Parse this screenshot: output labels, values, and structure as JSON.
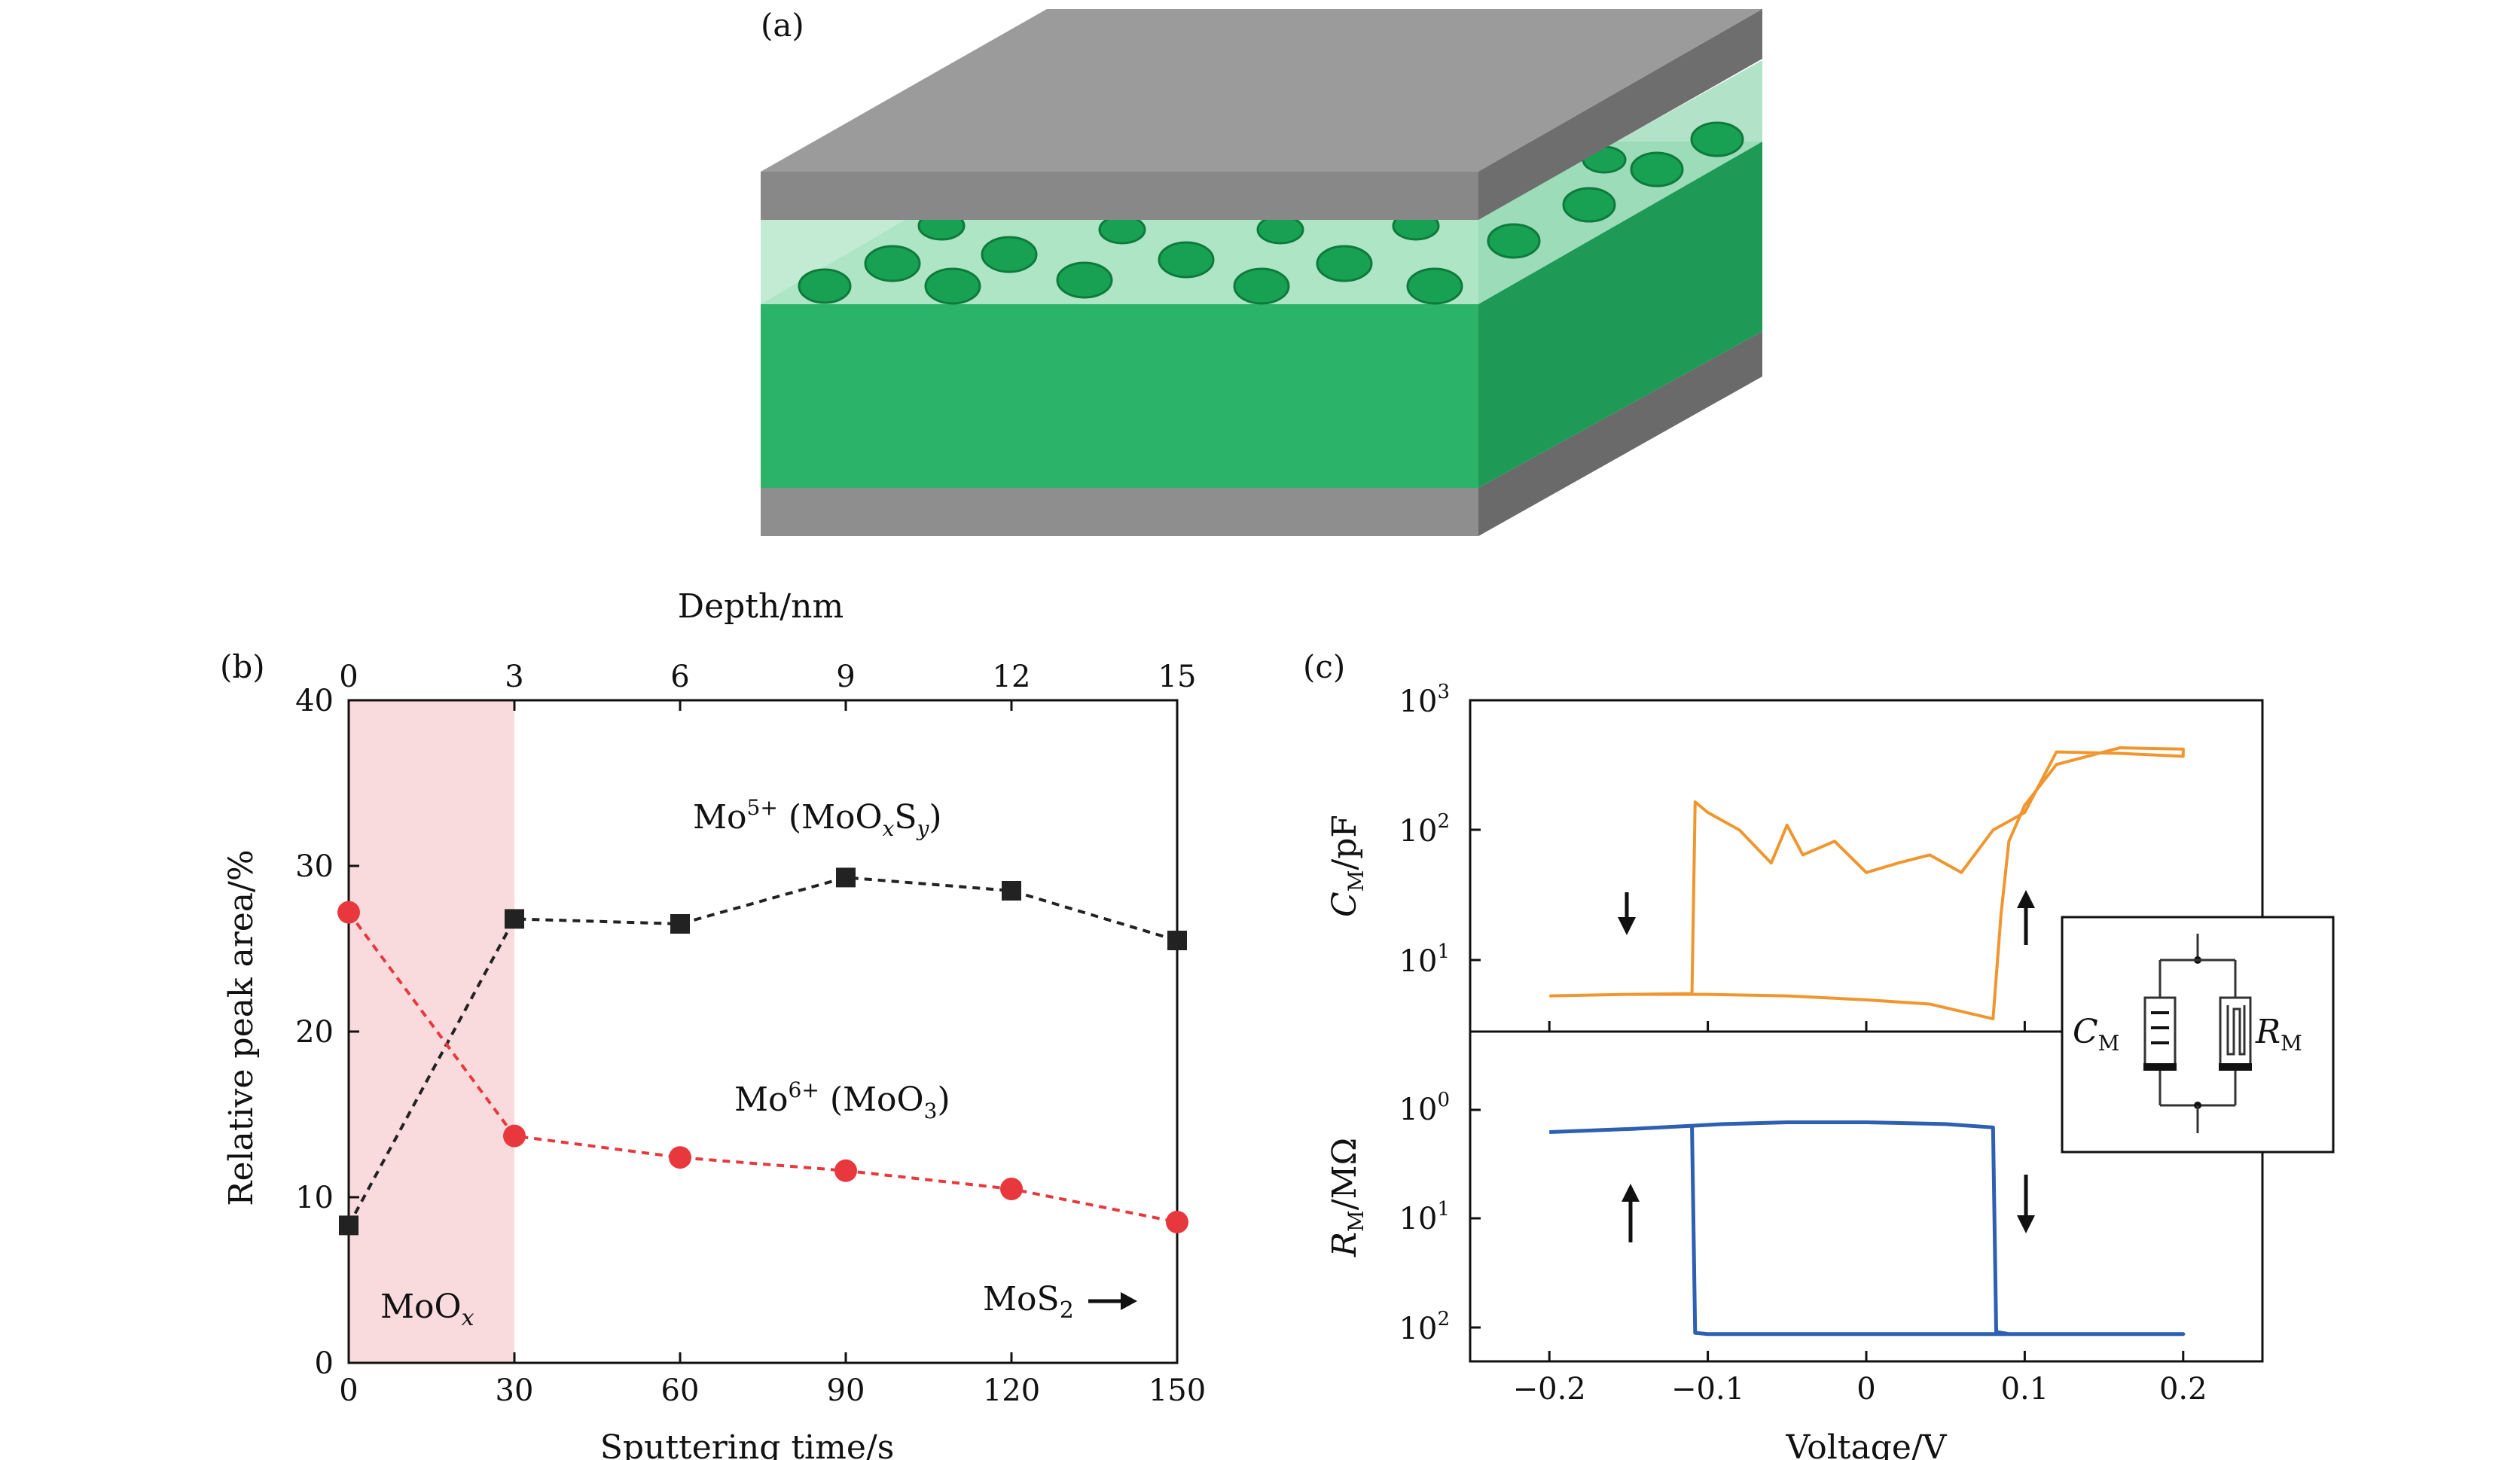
{
  "panel_a": {
    "label": "(a)"
  },
  "panel_b": {
    "label": "(b)"
  },
  "panel_c": {
    "label": "(c)"
  },
  "chart_data": [
    {
      "panel": "b",
      "type": "line",
      "xlabel": "Sputtering time/s",
      "x2label": "Depth/nm",
      "ylabel": "Relative peak area/%",
      "xlim": [
        0,
        150
      ],
      "ylim": [
        0,
        40
      ],
      "x_ticks": [
        0,
        30,
        60,
        90,
        120,
        150
      ],
      "x2_ticks": [
        0,
        3,
        6,
        9,
        12,
        15
      ],
      "y_ticks": [
        0,
        10,
        20,
        30,
        40
      ],
      "shaded_region": {
        "x": [
          0,
          30
        ],
        "color": "#f9dadd",
        "label": "MoOx"
      },
      "annotation_right": "MoS2",
      "series": [
        {
          "name": "Mo5+ (MoOxSy)",
          "color": "#222222",
          "marker": "square",
          "x": [
            0,
            30,
            60,
            90,
            120,
            150
          ],
          "y": [
            8.3,
            26.8,
            26.5,
            29.3,
            28.5,
            25.5
          ]
        },
        {
          "name": "Mo6+ (MoO3)",
          "color": "#e8383d",
          "marker": "circle",
          "x": [
            0,
            30,
            60,
            90,
            120,
            150
          ],
          "y": [
            27.2,
            13.7,
            12.4,
            11.6,
            10.5,
            8.5
          ]
        }
      ]
    },
    {
      "panel": "c",
      "type": "line",
      "xlabel": "Voltage/V",
      "xlim": [
        -0.25,
        0.25
      ],
      "x_ticks": [
        -0.2,
        -0.1,
        0,
        0.1,
        0.2
      ],
      "x_tick_labels": [
        "−0.2",
        "−0.1",
        "0",
        "0.1",
        "0.2"
      ],
      "top_ylabel": "CM/pF",
      "top_y_ticks": [
        "10^1",
        "10^2",
        "10^3"
      ],
      "bottom_ylabel": "RM/MΩ",
      "bottom_y_ticks": [
        "10^0",
        "10^1",
        "10^2"
      ],
      "inset_labels": [
        "CM",
        "RM"
      ],
      "series": [
        {
          "name": "CM",
          "color": "#f0962e",
          "x": [
            -0.2,
            -0.15,
            -0.11,
            -0.108,
            -0.1,
            -0.08,
            -0.06,
            -0.05,
            -0.04,
            -0.02,
            0,
            0.02,
            0.04,
            0.06,
            0.08,
            0.1,
            0.12,
            0.16,
            0.2,
            0.2,
            0.16,
            0.12,
            0.1,
            0.09,
            0.085,
            0.08,
            0.04,
            0,
            -0.05,
            -0.1,
            -0.15,
            -0.2
          ],
          "y": [
            8,
            8.2,
            8.3,
            190,
            160,
            120,
            70,
            130,
            80,
            100,
            60,
            70,
            80,
            60,
            120,
            160,
            430,
            420,
            400,
            450,
            460,
            350,
            180,
            100,
            30,
            5.5,
            7,
            7.5,
            8,
            8.2,
            8.2,
            8
          ]
        },
        {
          "name": "RM",
          "color": "#2d5fb3",
          "x": [
            -0.2,
            -0.15,
            -0.11,
            -0.09,
            -0.05,
            0,
            0.05,
            0.08,
            0.082,
            0.09,
            0.12,
            0.16,
            0.2,
            0.2,
            0.16,
            0.12,
            0.08,
            0.04,
            0,
            -0.05,
            -0.1,
            -0.108,
            -0.11,
            -0.15,
            -0.2
          ],
          "y": [
            1.6,
            1.5,
            1.4,
            1.35,
            1.3,
            1.3,
            1.35,
            1.45,
            110,
            115,
            115,
            115,
            115,
            115,
            115,
            115,
            115,
            115,
            115,
            115,
            115,
            112,
            1.4,
            1.5,
            1.6
          ]
        }
      ]
    }
  ]
}
